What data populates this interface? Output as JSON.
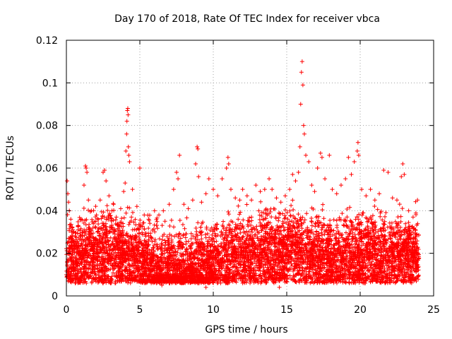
{
  "chart_data": {
    "type": "scatter",
    "title": "Day 170 of 2018, Rate Of TEC Index for receiver vbca",
    "xlabel": "GPS time / hours",
    "ylabel": "ROTI / TECUs",
    "xlim": [
      0,
      25
    ],
    "ylim": [
      0,
      0.12
    ],
    "x_ticks": [
      "0",
      "5",
      "10",
      "15",
      "20",
      "25"
    ],
    "y_ticks": [
      "0",
      "0.02",
      "0.04",
      "0.06",
      "0.08",
      "0.1",
      "0.12"
    ],
    "grid": true,
    "marker": "+",
    "series": [
      {
        "color": "#ff0000",
        "points": [
          [
            0.05,
            0.054
          ],
          [
            0.1,
            0.048
          ],
          [
            0.15,
            0.044
          ],
          [
            0.2,
            0.04
          ],
          [
            0.3,
            0.036
          ],
          [
            0.4,
            0.032
          ],
          [
            0.5,
            0.03
          ],
          [
            0.6,
            0.028
          ],
          [
            0.8,
            0.031
          ],
          [
            1.0,
            0.036
          ],
          [
            1.2,
            0.052
          ],
          [
            1.3,
            0.061
          ],
          [
            1.35,
            0.06
          ],
          [
            1.4,
            0.058
          ],
          [
            1.5,
            0.045
          ],
          [
            1.7,
            0.04
          ],
          [
            2.0,
            0.035
          ],
          [
            2.3,
            0.045
          ],
          [
            2.5,
            0.058
          ],
          [
            2.6,
            0.059
          ],
          [
            2.7,
            0.054
          ],
          [
            2.9,
            0.047
          ],
          [
            3.1,
            0.04
          ],
          [
            3.4,
            0.037
          ],
          [
            3.7,
            0.041
          ],
          [
            3.9,
            0.049
          ],
          [
            4.0,
            0.053
          ],
          [
            4.05,
            0.068
          ],
          [
            4.1,
            0.076
          ],
          [
            4.12,
            0.082
          ],
          [
            4.15,
            0.087
          ],
          [
            4.18,
            0.088
          ],
          [
            4.2,
            0.085
          ],
          [
            4.22,
            0.07
          ],
          [
            4.25,
            0.066
          ],
          [
            4.3,
            0.063
          ],
          [
            4.5,
            0.05
          ],
          [
            4.8,
            0.042
          ],
          [
            5.0,
            0.06
          ],
          [
            5.3,
            0.038
          ],
          [
            5.6,
            0.036
          ],
          [
            6.0,
            0.04
          ],
          [
            6.3,
            0.038
          ],
          [
            6.6,
            0.04
          ],
          [
            7.0,
            0.043
          ],
          [
            7.3,
            0.05
          ],
          [
            7.5,
            0.058
          ],
          [
            7.6,
            0.055
          ],
          [
            7.7,
            0.066
          ],
          [
            8.0,
            0.043
          ],
          [
            8.3,
            0.041
          ],
          [
            8.6,
            0.045
          ],
          [
            8.8,
            0.062
          ],
          [
            8.9,
            0.07
          ],
          [
            8.95,
            0.069
          ],
          [
            9.0,
            0.056
          ],
          [
            9.2,
            0.044
          ],
          [
            9.5,
            0.048
          ],
          [
            9.7,
            0.055
          ],
          [
            10.0,
            0.05
          ],
          [
            10.3,
            0.047
          ],
          [
            10.6,
            0.055
          ],
          [
            10.9,
            0.06
          ],
          [
            11.0,
            0.065
          ],
          [
            11.05,
            0.062
          ],
          [
            11.2,
            0.05
          ],
          [
            11.5,
            0.046
          ],
          [
            11.8,
            0.045
          ],
          [
            12.0,
            0.05
          ],
          [
            12.3,
            0.047
          ],
          [
            12.6,
            0.045
          ],
          [
            12.9,
            0.052
          ],
          [
            13.2,
            0.049
          ],
          [
            13.5,
            0.05
          ],
          [
            13.8,
            0.055
          ],
          [
            14.0,
            0.05
          ],
          [
            14.3,
            0.046
          ],
          [
            14.6,
            0.044
          ],
          [
            14.9,
            0.047
          ],
          [
            15.2,
            0.05
          ],
          [
            15.4,
            0.057
          ],
          [
            15.6,
            0.054
          ],
          [
            15.8,
            0.058
          ],
          [
            15.9,
            0.07
          ],
          [
            15.95,
            0.09
          ],
          [
            16.0,
            0.105
          ],
          [
            16.05,
            0.11
          ],
          [
            16.1,
            0.099
          ],
          [
            16.15,
            0.08
          ],
          [
            16.2,
            0.076
          ],
          [
            16.3,
            0.066
          ],
          [
            16.5,
            0.063
          ],
          [
            16.7,
            0.052
          ],
          [
            16.9,
            0.049
          ],
          [
            17.1,
            0.06
          ],
          [
            17.3,
            0.067
          ],
          [
            17.4,
            0.065
          ],
          [
            17.6,
            0.055
          ],
          [
            17.9,
            0.066
          ],
          [
            18.1,
            0.05
          ],
          [
            18.4,
            0.048
          ],
          [
            18.7,
            0.052
          ],
          [
            19.0,
            0.055
          ],
          [
            19.2,
            0.065
          ],
          [
            19.4,
            0.057
          ],
          [
            19.6,
            0.063
          ],
          [
            19.8,
            0.068
          ],
          [
            19.85,
            0.072
          ],
          [
            19.9,
            0.066
          ],
          [
            20.1,
            0.05
          ],
          [
            20.4,
            0.047
          ],
          [
            20.7,
            0.05
          ],
          [
            21.0,
            0.045
          ],
          [
            21.3,
            0.048
          ],
          [
            21.6,
            0.059
          ],
          [
            21.9,
            0.058
          ],
          [
            22.2,
            0.046
          ],
          [
            22.5,
            0.045
          ],
          [
            22.8,
            0.056
          ],
          [
            22.9,
            0.062
          ],
          [
            23.0,
            0.057
          ],
          [
            23.3,
            0.04
          ],
          [
            23.6,
            0.037
          ],
          [
            23.9,
            0.045
          ],
          [
            0.1,
            0.012
          ],
          [
            0.3,
            0.008
          ],
          [
            0.6,
            0.006
          ],
          [
            1.0,
            0.007
          ],
          [
            1.5,
            0.009
          ],
          [
            2.0,
            0.008
          ],
          [
            2.5,
            0.006
          ],
          [
            3.0,
            0.008
          ],
          [
            3.5,
            0.007
          ],
          [
            4.0,
            0.009
          ],
          [
            4.5,
            0.008
          ],
          [
            5.0,
            0.007
          ],
          [
            5.5,
            0.009
          ],
          [
            6.0,
            0.008
          ],
          [
            6.5,
            0.005
          ],
          [
            7.0,
            0.006
          ],
          [
            7.5,
            0.009
          ],
          [
            8.0,
            0.007
          ],
          [
            8.5,
            0.008
          ],
          [
            9.0,
            0.006
          ],
          [
            9.5,
            0.004
          ],
          [
            10.0,
            0.007
          ],
          [
            10.5,
            0.006
          ],
          [
            11.0,
            0.008
          ],
          [
            11.5,
            0.007
          ],
          [
            12.0,
            0.006
          ],
          [
            12.5,
            0.008
          ],
          [
            13.0,
            0.007
          ],
          [
            13.5,
            0.009
          ],
          [
            14.0,
            0.008
          ],
          [
            14.5,
            0.004
          ],
          [
            15.0,
            0.008
          ],
          [
            15.5,
            0.009
          ],
          [
            16.0,
            0.01
          ],
          [
            16.5,
            0.009
          ],
          [
            17.0,
            0.011
          ],
          [
            17.5,
            0.01
          ],
          [
            18.0,
            0.011
          ],
          [
            18.5,
            0.01
          ],
          [
            19.0,
            0.012
          ],
          [
            19.5,
            0.011
          ],
          [
            20.0,
            0.008
          ],
          [
            20.5,
            0.009
          ],
          [
            21.0,
            0.01
          ],
          [
            21.5,
            0.009
          ],
          [
            22.0,
            0.008
          ],
          [
            22.5,
            0.009
          ],
          [
            23.0,
            0.01
          ],
          [
            23.5,
            0.008
          ],
          [
            23.9,
            0.012
          ]
        ]
      }
    ]
  }
}
